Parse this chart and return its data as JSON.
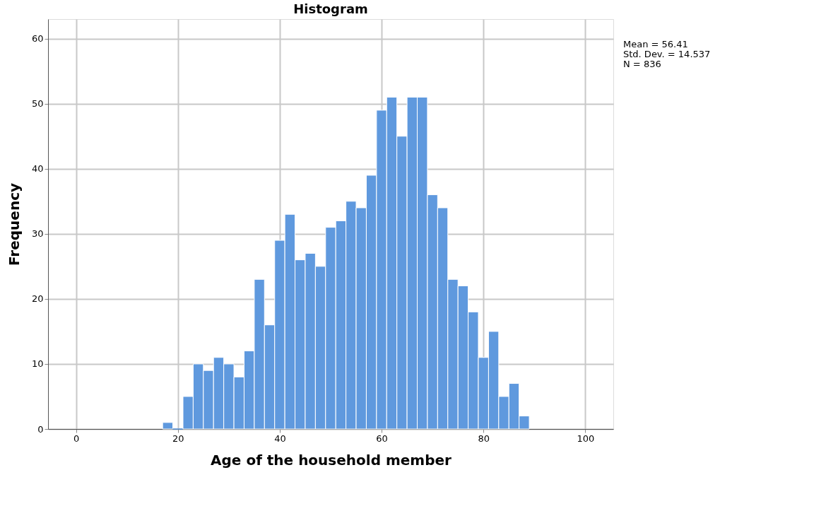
{
  "chart_data": {
    "type": "histogram",
    "title": "Histogram",
    "xlabel": "Age of the household member",
    "ylabel": "Frequency",
    "bins": [
      17,
      19,
      21,
      23,
      25,
      27,
      29,
      31,
      33,
      35,
      37,
      39,
      41,
      43,
      45,
      47,
      49,
      51,
      53,
      55,
      57,
      59,
      61,
      63,
      65,
      67,
      69,
      71,
      73,
      75,
      77,
      79,
      81,
      83,
      85,
      87,
      89
    ],
    "values": [
      1,
      0,
      5,
      10,
      9,
      11,
      10,
      8,
      12,
      23,
      16,
      29,
      33,
      26,
      27,
      25,
      31,
      32,
      35,
      34,
      39,
      49,
      51,
      45,
      51,
      51,
      36,
      34,
      23,
      22,
      18,
      11,
      15,
      5,
      7,
      2
    ],
    "color": "#5f99de",
    "xlim": [
      -5.5,
      105.5
    ],
    "xticks": [
      0,
      20,
      40,
      60,
      80,
      100
    ],
    "ylim": [
      0,
      63
    ],
    "yticks": [
      0,
      10,
      20,
      30,
      40,
      50,
      60
    ],
    "grid": true,
    "annotations": [
      "Mean = 56.41\nStd. Dev. = 14.537\nN = 836"
    ]
  }
}
